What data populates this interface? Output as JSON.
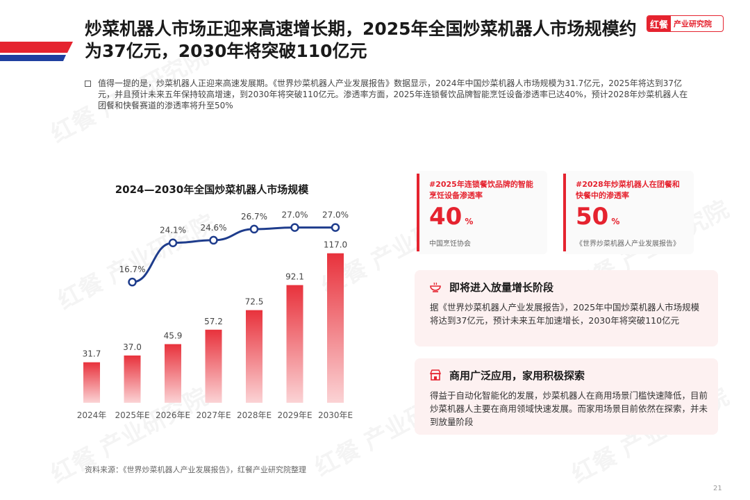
{
  "header": {
    "title": "炒菜机器人市场正迎来高速增长期，2025年全国炒菜机器人市场规模约为37亿元，2030年将突破110亿元",
    "brand_logo": "红餐",
    "brand_text": "产业研究院",
    "accent_color": "#e5232f",
    "stripe_color": "#1e3fa0"
  },
  "summary": "值得一提的是，炒菜机器人正迎来高速发展期。《世界炒菜机器人产业发展报告》数据显示，2024年中国炒菜机器人市场规模为31.7亿元，2025年将达到37亿元，并且预计未来五年保持较高增速，到2030年将突破110亿元。渗透率方面，2025年连锁餐饮品牌智能烹饪设备渗透率已达40%，预计2028年炒菜机器人在团餐和快餐赛道的渗透率将升至50%",
  "watermark": "红餐 产业研究院",
  "chart_data": {
    "type": "bar",
    "title": "2024—2030年全国炒菜机器人市场规模",
    "categories": [
      "2024年",
      "2025年E",
      "2026年E",
      "2027年E",
      "2028年E",
      "2029年E",
      "2030年E"
    ],
    "series": [
      {
        "values": [
          31.7,
          37.0,
          45.9,
          57.2,
          72.5,
          92.1,
          117.0
        ],
        "labels": [
          "31.7",
          "37.0",
          "45.9",
          "57.2",
          "72.5",
          "92.1",
          "117.0"
        ],
        "color": "#e5232f"
      },
      {
        "type": "line",
        "x": [
          "2025年E",
          "2026年E",
          "2027年E",
          "2028年E",
          "2029年E",
          "2030年E"
        ],
        "values": [
          16.7,
          24.1,
          24.6,
          26.7,
          27.0,
          27.0
        ],
        "labels": [
          "16.7%",
          "24.1%",
          "24.6%",
          "26.7%",
          "27.0%",
          "27.0%"
        ],
        "color": "#1e3c8c"
      }
    ],
    "bar_ylim": [
      0,
      125
    ],
    "line_ylim": [
      0,
      30
    ],
    "grid": false,
    "legend": "none"
  },
  "stats": [
    {
      "label": "#2025年连锁餐饮品牌的智能烹饪设备渗透率",
      "value": "40",
      "unit": "%",
      "source": "中国烹饪协会"
    },
    {
      "label": "#2028年炒菜机器人在团餐和快餐中的渗透率",
      "value": "50",
      "unit": "%",
      "source": "《世界炒菜机器人产业发展报告》"
    }
  ],
  "cards": [
    {
      "icon": "rice-bowl-icon",
      "title": "即将进入放量增长阶段",
      "text": "据《世界炒菜机器人产业发展报告》，2025年中国炒菜机器人市场规模将达到37亿元，预计未来五年加速增长，2030年将突破110亿元"
    },
    {
      "icon": "shop-icon",
      "title": "商用广泛应用，家用积极探索",
      "text": "得益于自动化智能化的发展，炒菜机器人在商用场景门槛快速降低，目前炒菜机器人主要在商用领域快速发展。而家用场景目前依然在探索，并未到放量阶段"
    }
  ],
  "footer": {
    "source": "资料来源：《世界炒菜机器人产业发展报告》，红餐产业研究院整理",
    "page": "21"
  }
}
